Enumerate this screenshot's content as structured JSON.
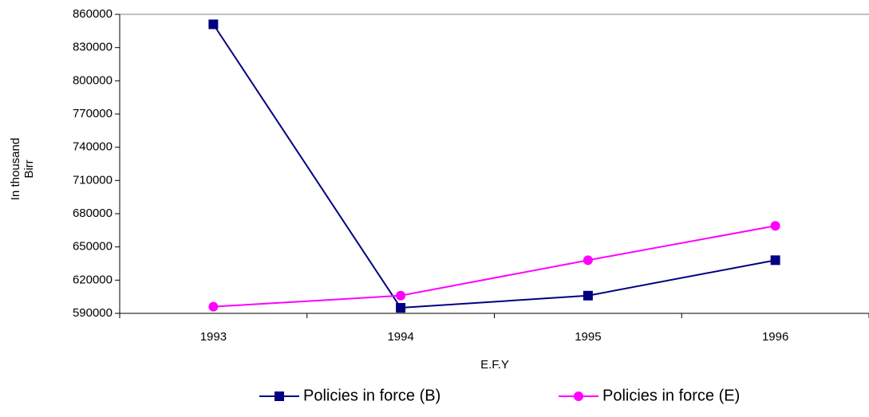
{
  "chart_data": {
    "type": "line",
    "categories": [
      "1993",
      "1994",
      "1995",
      "1996"
    ],
    "series": [
      {
        "name": "Policies in force (B)",
        "color": "#000080",
        "marker": "square",
        "values": [
          851000,
          595000,
          606000,
          638000
        ]
      },
      {
        "name": "Policies in force (E)",
        "color": "#ff00ff",
        "marker": "circle",
        "values": [
          596000,
          606000,
          638000,
          669000
        ]
      }
    ],
    "xlabel": "E.F.Y",
    "ylabel": "In thousand Birr",
    "ylim": [
      590000,
      860000
    ],
    "yticks": [
      590000,
      620000,
      650000,
      680000,
      710000,
      740000,
      770000,
      800000,
      830000,
      860000
    ],
    "legend": "bottom"
  }
}
